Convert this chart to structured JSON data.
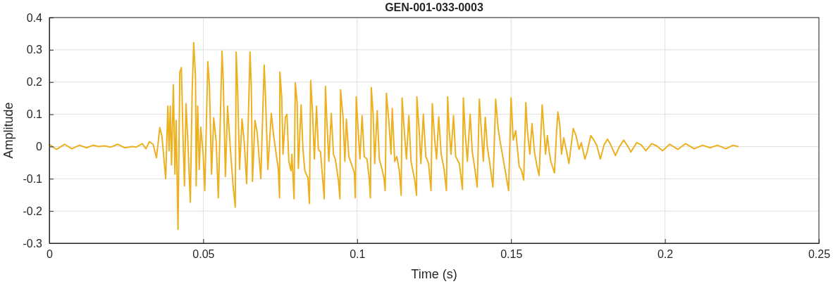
{
  "chart_data": {
    "type": "line",
    "title": "GEN-001-033-0003",
    "xlabel": "Time (s)",
    "ylabel": "Amplitude",
    "xlim": [
      0,
      0.25
    ],
    "ylim": [
      -0.3,
      0.4
    ],
    "xticks": [
      0,
      0.05,
      0.1,
      0.15,
      0.2,
      0.25
    ],
    "yticks": [
      -0.3,
      -0.2,
      -0.1,
      0,
      0.1,
      0.2,
      0.3,
      0.4
    ],
    "grid": true,
    "x": [
      0,
      0.0023,
      0.005,
      0.0073,
      0.0098,
      0.0121,
      0.0142,
      0.016,
      0.0179,
      0.0199,
      0.0222,
      0.0245,
      0.0268,
      0.0282,
      0.0302,
      0.0314,
      0.0325,
      0.0337,
      0.0348,
      0.0359,
      0.0366,
      0.0378,
      0.0385,
      0.0389,
      0.0393,
      0.0397,
      0.0403,
      0.0408,
      0.0412,
      0.0418,
      0.0424,
      0.0429,
      0.0435,
      0.0439,
      0.0444,
      0.045,
      0.0458,
      0.0464,
      0.0469,
      0.0475,
      0.0477,
      0.0482,
      0.0487,
      0.0492,
      0.05,
      0.0505,
      0.0515,
      0.052,
      0.0527,
      0.0534,
      0.0542,
      0.0549,
      0.0561,
      0.0565,
      0.0572,
      0.0579,
      0.0588,
      0.0597,
      0.0604,
      0.0607,
      0.0612,
      0.0618,
      0.0626,
      0.0633,
      0.0641,
      0.0652,
      0.0656,
      0.066,
      0.0668,
      0.0675,
      0.0687,
      0.0698,
      0.0702,
      0.071,
      0.0721,
      0.0729,
      0.0744,
      0.0748,
      0.0749,
      0.0755,
      0.0759,
      0.0767,
      0.0772,
      0.0778,
      0.0785,
      0.0788,
      0.0795,
      0.0799,
      0.0805,
      0.0809,
      0.0818,
      0.0824,
      0.083,
      0.084,
      0.0845,
      0.0849,
      0.0855,
      0.0861,
      0.0868,
      0.0874,
      0.0881,
      0.0893,
      0.0897,
      0.0902,
      0.0908,
      0.0916,
      0.0923,
      0.0929,
      0.0939,
      0.0944,
      0.0946,
      0.0954,
      0.096,
      0.0965,
      0.0973,
      0.0981,
      0.0991,
      0.0994,
      0.0997,
      0.1003,
      0.1009,
      0.1016,
      0.1023,
      0.1032,
      0.1039,
      0.1043,
      0.1046,
      0.1052,
      0.1057,
      0.1065,
      0.1072,
      0.108,
      0.1087,
      0.1091,
      0.1095,
      0.1103,
      0.111,
      0.1114,
      0.1122,
      0.1129,
      0.1137,
      0.1143,
      0.1146,
      0.1152,
      0.116,
      0.1168,
      0.1175,
      0.1187,
      0.1193,
      0.1194,
      0.1202,
      0.1207,
      0.1215,
      0.1223,
      0.1232,
      0.124,
      0.1244,
      0.1252,
      0.1258,
      0.1265,
      0.1273,
      0.1282,
      0.129,
      0.1294,
      0.1299,
      0.1305,
      0.1313,
      0.132,
      0.1332,
      0.1342,
      0.1345,
      0.1351,
      0.1358,
      0.1367,
      0.1374,
      0.1381,
      0.139,
      0.1397,
      0.1404,
      0.141,
      0.1416,
      0.1423,
      0.1431,
      0.1441,
      0.145,
      0.1458,
      0.1465,
      0.1473,
      0.1481,
      0.1492,
      0.15,
      0.1507,
      0.1515,
      0.1526,
      0.1534,
      0.1541,
      0.1548,
      0.1553,
      0.1561,
      0.1568,
      0.1576,
      0.1584,
      0.1591,
      0.1601,
      0.1609,
      0.1612,
      0.1618,
      0.1624,
      0.1629,
      0.1641,
      0.1648,
      0.1652,
      0.1658,
      0.1664,
      0.1671,
      0.1679,
      0.1688,
      0.1702,
      0.1711,
      0.1721,
      0.1728,
      0.174,
      0.1747,
      0.1759,
      0.1769,
      0.1778,
      0.179,
      0.1802,
      0.1813,
      0.1822,
      0.1839,
      0.1851,
      0.1866,
      0.1881,
      0.1889,
      0.1908,
      0.1923,
      0.1938,
      0.1957,
      0.1973,
      0.1992,
      0.2015,
      0.2042,
      0.2067,
      0.2095,
      0.2122,
      0.2147,
      0.217,
      0.2198,
      0.2221,
      0.2237
    ],
    "series": [
      {
        "color": "#edb120",
        "values": [
          0.007,
          -0.009,
          0.007,
          -0.007,
          0.004,
          -0.004,
          0.004,
          0,
          0.002,
          -0.002,
          0.007,
          -0.004,
          0,
          -0.002,
          0.009,
          -0.007,
          0.015,
          0.007,
          -0.035,
          0.059,
          0.031,
          -0.1,
          0.125,
          -0.013,
          0.125,
          -0.057,
          0.192,
          -0.086,
          0.081,
          -0.257,
          0.231,
          0.245,
          0.002,
          -0.122,
          0.133,
          0.016,
          -0.173,
          0.169,
          0.322,
          0.212,
          -0.122,
          0.125,
          -0.071,
          0.06,
          -0.028,
          -0.137,
          0.263,
          0.191,
          -0.086,
          0.089,
          0.016,
          -0.159,
          0.296,
          0.205,
          -0.093,
          0.125,
          -0.006,
          -0.122,
          -0.188,
          0.293,
          0.169,
          -0.071,
          0.085,
          0.016,
          -0.115,
          0.293,
          0.191,
          -0.108,
          0.081,
          0.045,
          -0.1,
          0.253,
          0.162,
          -0.071,
          0.103,
          0.031,
          -0.071,
          -0.159,
          0.231,
          0.151,
          -0.024,
          0.092,
          0.1,
          -0.046,
          -0.075,
          -0.024,
          -0.162,
          0.198,
          0.136,
          -0.068,
          0.129,
          -0.009,
          -0.075,
          -0.097,
          -0.177,
          0.205,
          0.107,
          -0.039,
          0.125,
          -0.009,
          -0.017,
          -0.162,
          0.187,
          0.071,
          -0.046,
          0.103,
          -0.024,
          -0.039,
          -0.104,
          -0.162,
          0.176,
          0.092,
          -0.046,
          0.085,
          -0.031,
          -0.053,
          -0.082,
          -0.159,
          0.154,
          0.056,
          -0.039,
          0.096,
          -0.031,
          -0.039,
          -0.097,
          -0.159,
          0.183,
          0.1,
          -0.053,
          0.111,
          -0.039,
          -0.068,
          -0.097,
          -0.137,
          0.165,
          0.078,
          -0.024,
          0.118,
          -0.046,
          -0.031,
          -0.075,
          -0.151,
          0.151,
          0.063,
          -0.039,
          0.096,
          -0.046,
          -0.104,
          -0.151,
          0.154,
          0.041,
          -0.053,
          0.1,
          -0.031,
          -0.053,
          -0.137,
          0.133,
          0.02,
          -0.039,
          0.092,
          -0.024,
          -0.068,
          -0.137,
          0.154,
          0.049,
          -0.024,
          0.096,
          -0.031,
          -0.053,
          -0.133,
          0.151,
          0.041,
          -0.046,
          0.1,
          -0.017,
          -0.06,
          -0.126,
          0.147,
          0.041,
          -0.046,
          0.091,
          -0.002,
          -0.053,
          -0.126,
          0.147,
          0.056,
          0.012,
          -0.031,
          -0.075,
          -0.137,
          0.151,
          0.02,
          0.049,
          -0.06,
          -0.075,
          -0.104,
          0.136,
          0.049,
          -0.024,
          0.071,
          -0.017,
          -0.06,
          -0.09,
          0.129,
          0.02,
          -0.024,
          0.034,
          -0.017,
          -0.046,
          -0.082,
          0.049,
          0.107,
          0.071,
          -0.024,
          0.027,
          -0.009,
          -0.053,
          0.056,
          0.034,
          -0.009,
          0.012,
          -0.039,
          -0.017,
          0.034,
          0.02,
          0.005,
          -0.039,
          0.005,
          0.023,
          0.009,
          -0.028,
          -0.002,
          0.02,
          -0.002,
          -0.017,
          0.012,
          0.005,
          -0.013,
          0.009,
          0.002,
          -0.013,
          0.007,
          -0.009,
          0.009,
          -0.007,
          0.004,
          -0.004,
          0.004,
          -0.007,
          0.004,
          0
        ]
      }
    ]
  }
}
